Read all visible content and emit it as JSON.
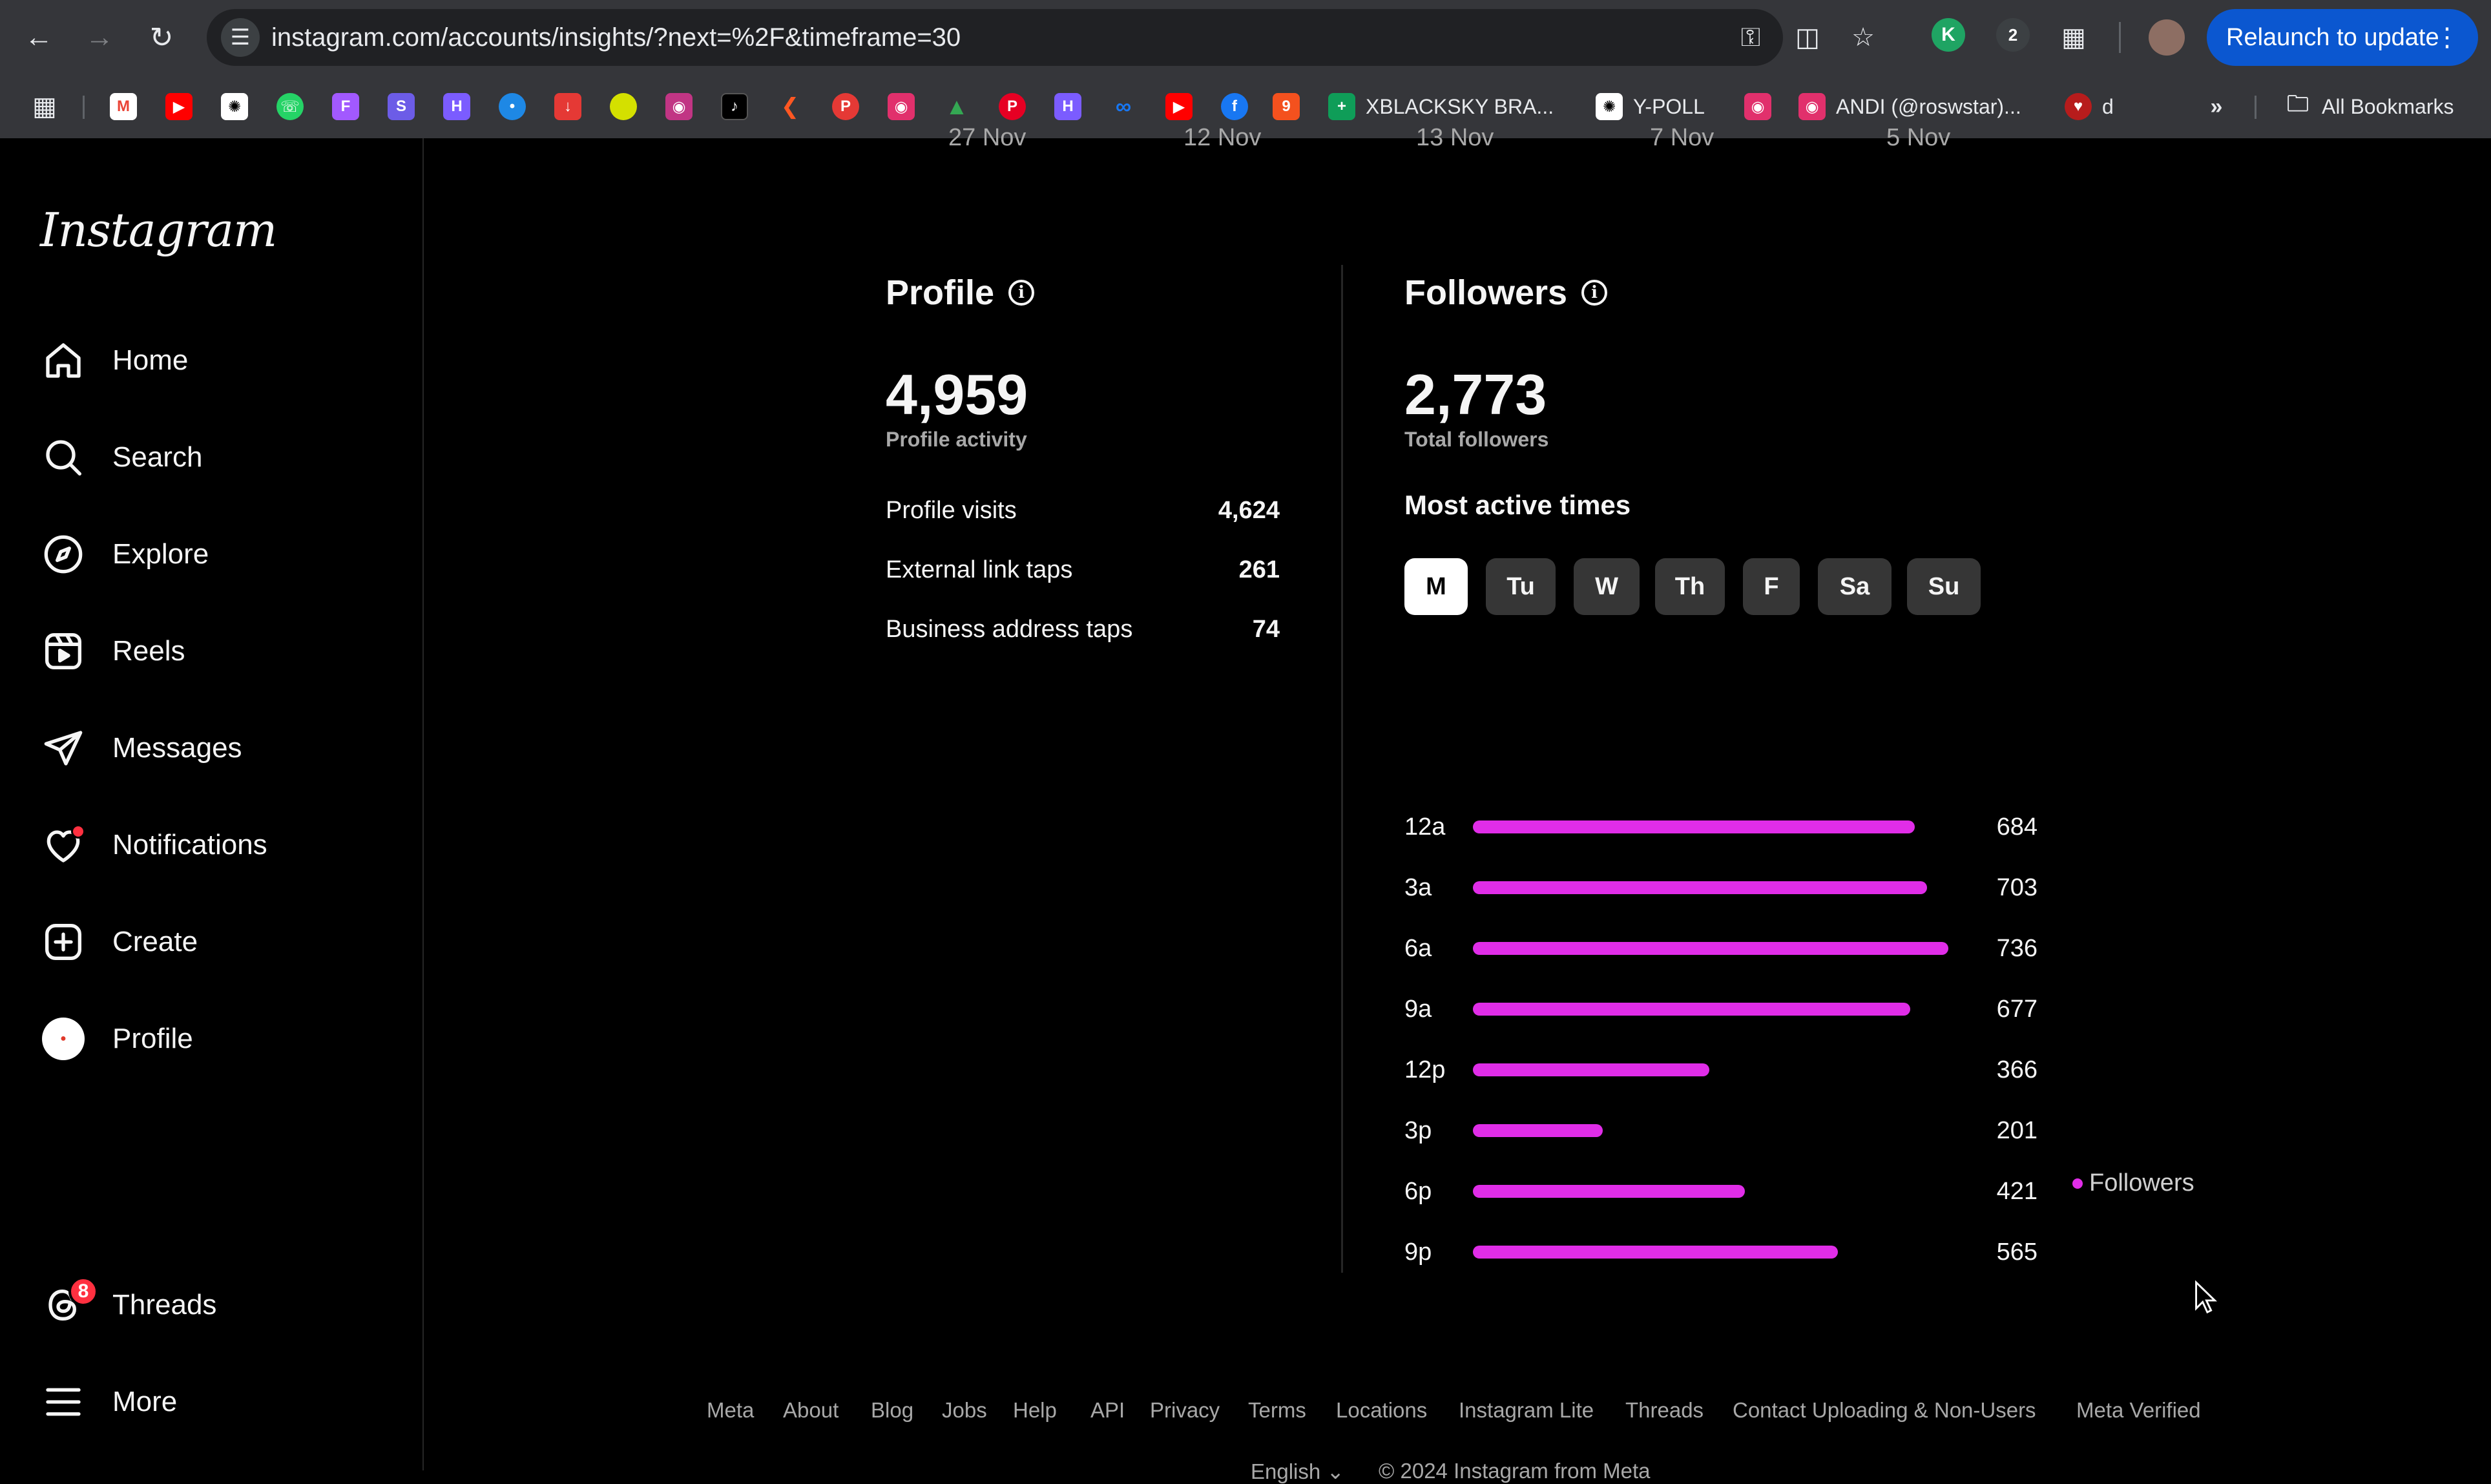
{
  "browser": {
    "url": "instagram.com/accounts/insights/?next=%2F&timeframe=30",
    "relaunch_label": "Relaunch to update",
    "extension_badge": "2",
    "bookmarks": {
      "xblacksky": "XBLACKSKY BRA...",
      "ypoll": "Y-POLL",
      "andi": "ANDI (@roswstar)...",
      "d": "d",
      "all_bookmarks": "All Bookmarks"
    }
  },
  "sidebar": {
    "logo": "Instagram",
    "items": [
      {
        "label": "Home",
        "icon": "home-icon"
      },
      {
        "label": "Search",
        "icon": "search-icon"
      },
      {
        "label": "Explore",
        "icon": "compass-icon"
      },
      {
        "label": "Reels",
        "icon": "reels-icon"
      },
      {
        "label": "Messages",
        "icon": "paper-plane-icon"
      },
      {
        "label": "Notifications",
        "icon": "heart-icon"
      },
      {
        "label": "Create",
        "icon": "plus-square-icon"
      },
      {
        "label": "Profile",
        "icon": "avatar"
      }
    ],
    "threads": {
      "label": "Threads",
      "badge": "8"
    },
    "more": {
      "label": "More"
    }
  },
  "top_dates": [
    "27 Nov",
    "12 Nov",
    "13 Nov",
    "7 Nov",
    "5 Nov"
  ],
  "profile": {
    "title": "Profile",
    "total": "4,959",
    "total_label": "Profile activity",
    "rows": [
      {
        "label": "Profile visits",
        "value": "4,624"
      },
      {
        "label": "External link taps",
        "value": "261"
      },
      {
        "label": "Business address taps",
        "value": "74"
      }
    ]
  },
  "followers": {
    "title": "Followers",
    "total": "2,773",
    "total_label": "Total followers",
    "active_title": "Most active times",
    "days": [
      "M",
      "Tu",
      "W",
      "Th",
      "F",
      "Sa",
      "Su"
    ],
    "selected_day": "M",
    "legend": "Followers"
  },
  "chart_data": {
    "type": "bar",
    "orientation": "horizontal",
    "categories": [
      "12a",
      "3a",
      "6a",
      "9a",
      "12p",
      "3p",
      "6p",
      "9p"
    ],
    "series": [
      {
        "name": "Followers",
        "values": [
          684,
          703,
          736,
          677,
          366,
          201,
          421,
          565
        ]
      }
    ],
    "xlim": [
      0,
      736
    ],
    "legend": "bottom-center",
    "color": "#e02de8"
  },
  "footer": {
    "links": [
      "Meta",
      "About",
      "Blog",
      "Jobs",
      "Help",
      "API",
      "Privacy",
      "Terms",
      "Locations",
      "Instagram Lite",
      "Threads",
      "Contact Uploading & Non-Users",
      "Meta Verified"
    ],
    "language": "English",
    "copyright": "© 2024 Instagram from Meta"
  }
}
